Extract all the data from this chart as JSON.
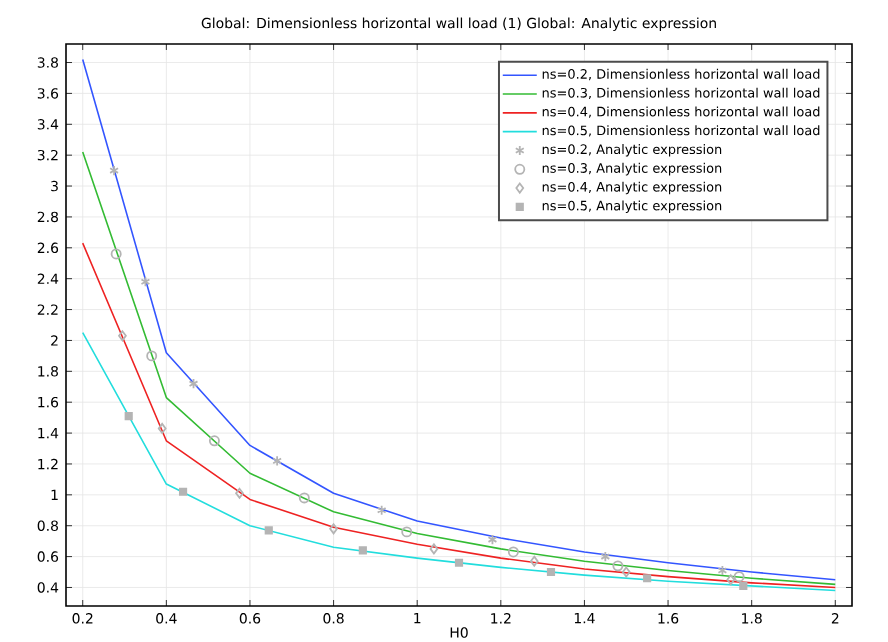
{
  "chart_data": {
    "type": "line",
    "title": "Global: Dimensionless horizontal wall load (1)  Global: Analytic expression",
    "xlabel": "H0",
    "xlim": [
      0.16,
      2.04
    ],
    "ylim": [
      0.28,
      3.92
    ],
    "xticks": [
      0.2,
      0.4,
      0.6,
      0.8,
      1,
      1.2,
      1.4,
      1.6,
      1.8,
      2
    ],
    "yticks": [
      0.4,
      0.6,
      0.8,
      1,
      1.2,
      1.4,
      1.6,
      1.8,
      2,
      2.2,
      2.4,
      2.6,
      2.8,
      3,
      3.2,
      3.4,
      3.6,
      3.8
    ],
    "grid": true,
    "legend": "top right",
    "series": [
      {
        "name": "ns=0.2, Dimensionless horizontal wall load",
        "color": "#3355ff",
        "x": [
          0.2,
          0.4,
          0.6,
          0.8,
          1.0,
          1.2,
          1.4,
          1.6,
          1.8,
          2.0
        ],
        "values": [
          3.82,
          1.92,
          1.32,
          1.01,
          0.83,
          0.72,
          0.63,
          0.56,
          0.5,
          0.45
        ]
      },
      {
        "name": "ns=0.3, Dimensionless horizontal wall load",
        "color": "#33bb33",
        "x": [
          0.2,
          0.4,
          0.6,
          0.8,
          1.0,
          1.2,
          1.4,
          1.6,
          1.8,
          2.0
        ],
        "values": [
          3.22,
          1.63,
          1.14,
          0.89,
          0.75,
          0.65,
          0.57,
          0.51,
          0.46,
          0.42
        ]
      },
      {
        "name": "ns=0.4, Dimensionless horizontal wall load",
        "color": "#ee2222",
        "x": [
          0.2,
          0.4,
          0.6,
          0.8,
          1.0,
          1.2,
          1.4,
          1.6,
          1.8,
          2.0
        ],
        "values": [
          2.63,
          1.35,
          0.97,
          0.79,
          0.68,
          0.59,
          0.52,
          0.47,
          0.43,
          0.4
        ]
      },
      {
        "name": "ns=0.5, Dimensionless horizontal wall load",
        "color": "#22dddd",
        "x": [
          0.2,
          0.4,
          0.6,
          0.8,
          1.0,
          1.2,
          1.4,
          1.6,
          1.8,
          2.0
        ],
        "values": [
          2.05,
          1.07,
          0.8,
          0.66,
          0.59,
          0.53,
          0.48,
          0.44,
          0.41,
          0.38
        ]
      },
      {
        "name": "ns=0.2, Analytic expression",
        "type": "scatter",
        "marker": "cross",
        "color": "#b4b4b4",
        "x": [
          0.275,
          0.35,
          0.465,
          0.665,
          0.915,
          1.18,
          1.45,
          1.73
        ],
        "values": [
          3.1,
          2.38,
          1.72,
          1.22,
          0.9,
          0.71,
          0.6,
          0.51
        ]
      },
      {
        "name": "ns=0.3, Analytic expression",
        "type": "scatter",
        "marker": "circle",
        "color": "#b4b4b4",
        "x": [
          0.28,
          0.365,
          0.515,
          0.73,
          0.975,
          1.23,
          1.48,
          1.77
        ],
        "values": [
          2.56,
          1.9,
          1.35,
          0.98,
          0.76,
          0.63,
          0.54,
          0.47
        ]
      },
      {
        "name": "ns=0.4, Analytic expression",
        "type": "scatter",
        "marker": "diamond",
        "color": "#b4b4b4",
        "x": [
          0.295,
          0.39,
          0.575,
          0.8,
          1.04,
          1.28,
          1.5,
          1.75
        ],
        "values": [
          2.03,
          1.43,
          1.01,
          0.78,
          0.65,
          0.57,
          0.5,
          0.45
        ]
      },
      {
        "name": "ns=0.5, Analytic expression",
        "type": "scatter",
        "marker": "square",
        "color": "#b4b4b4",
        "x": [
          0.31,
          0.44,
          0.645,
          0.87,
          1.1,
          1.32,
          1.55,
          1.78
        ],
        "values": [
          1.51,
          1.02,
          0.77,
          0.64,
          0.56,
          0.5,
          0.46,
          0.41
        ]
      }
    ]
  }
}
